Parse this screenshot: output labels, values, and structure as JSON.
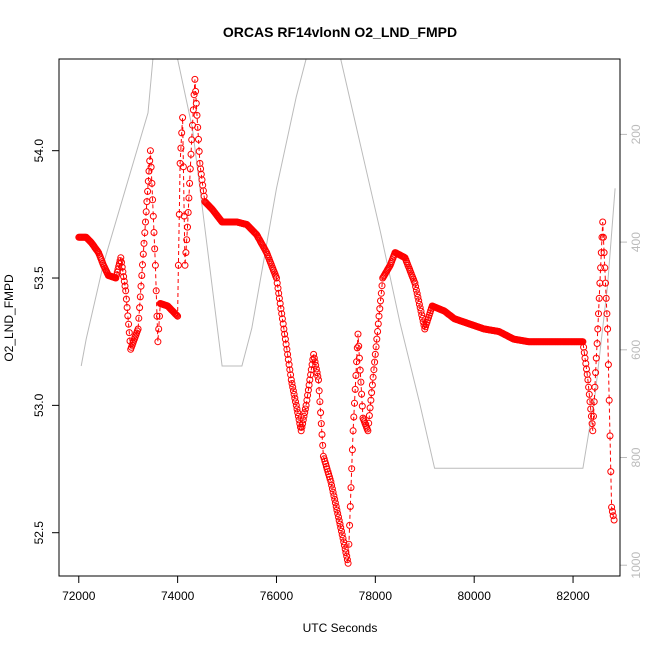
{
  "chart_data": {
    "type": "scatter",
    "title": "ORCAS RF14vlonN O2_LND_FMPD",
    "xlabel": "UTC Seconds",
    "ylabel": "O2_LND_FMPD",
    "xlim": [
      71600,
      82950
    ],
    "ylim": [
      52.33,
      54.36
    ],
    "y2lim": [
      60,
      1020
    ],
    "y2_reversed": true,
    "x_ticks": [
      72000,
      74000,
      76000,
      78000,
      80000,
      82000
    ],
    "y_ticks": [
      52.5,
      53.0,
      53.5,
      54.0
    ],
    "y2_ticks": [
      200,
      400,
      600,
      800,
      1000
    ],
    "colors": {
      "series": "#ff0000",
      "secondary": "#bbbbbb"
    },
    "series": [
      {
        "type": "line+points",
        "points": [
          [
            72000,
            53.66
          ],
          [
            72150,
            53.66
          ],
          [
            72250,
            53.64
          ],
          [
            72400,
            53.6
          ],
          [
            72500,
            53.55
          ],
          [
            72600,
            53.51
          ],
          [
            72750,
            53.5
          ],
          [
            72850,
            53.58
          ],
          [
            72950,
            53.45
          ],
          [
            73050,
            53.22
          ],
          [
            73200,
            53.3
          ],
          [
            73350,
            53.72
          ],
          [
            73450,
            54.0
          ],
          [
            73550,
            53.55
          ],
          [
            73600,
            53.25
          ],
          [
            73650,
            53.4
          ],
          [
            73800,
            53.39
          ],
          [
            74000,
            53.35
          ],
          [
            74050,
            53.95
          ],
          [
            74100,
            54.13
          ],
          [
            74150,
            53.55
          ],
          [
            74200,
            53.7
          ],
          [
            74300,
            54.1
          ],
          [
            74350,
            54.28
          ],
          [
            74450,
            53.95
          ],
          [
            74550,
            53.8
          ],
          [
            74700,
            53.77
          ],
          [
            74900,
            53.72
          ],
          [
            75200,
            53.72
          ],
          [
            75400,
            53.71
          ],
          [
            75600,
            53.67
          ],
          [
            75800,
            53.6
          ],
          [
            76000,
            53.5
          ],
          [
            76150,
            53.3
          ],
          [
            76300,
            53.1
          ],
          [
            76400,
            53.0
          ],
          [
            76500,
            52.9
          ],
          [
            76600,
            53.0
          ],
          [
            76750,
            53.2
          ],
          [
            76850,
            53.1
          ],
          [
            76950,
            52.8
          ],
          [
            77100,
            52.7
          ],
          [
            77300,
            52.52
          ],
          [
            77450,
            52.38
          ],
          [
            77550,
            52.9
          ],
          [
            77650,
            53.28
          ],
          [
            77750,
            52.95
          ],
          [
            77850,
            52.9
          ],
          [
            78000,
            53.2
          ],
          [
            78150,
            53.5
          ],
          [
            78300,
            53.55
          ],
          [
            78400,
            53.6
          ],
          [
            78600,
            53.58
          ],
          [
            78800,
            53.48
          ],
          [
            79000,
            53.3
          ],
          [
            79150,
            53.39
          ],
          [
            79400,
            53.37
          ],
          [
            79600,
            53.34
          ],
          [
            79900,
            53.32
          ],
          [
            80200,
            53.3
          ],
          [
            80500,
            53.29
          ],
          [
            80800,
            53.26
          ],
          [
            81100,
            53.25
          ],
          [
            81500,
            53.25
          ],
          [
            82200,
            53.25
          ],
          [
            82300,
            53.1
          ],
          [
            82400,
            52.9
          ],
          [
            82500,
            53.3
          ],
          [
            82600,
            53.72
          ],
          [
            82700,
            53.3
          ],
          [
            82780,
            52.6
          ],
          [
            82830,
            52.55
          ]
        ]
      },
      {
        "type": "line",
        "axis": "right",
        "points": [
          [
            72050,
            630
          ],
          [
            72150,
            580
          ],
          [
            72500,
            440
          ],
          [
            72950,
            300
          ],
          [
            73400,
            160
          ],
          [
            73500,
            60
          ],
          [
            74000,
            60
          ],
          [
            74300,
            190
          ],
          [
            74600,
            410
          ],
          [
            74900,
            630
          ],
          [
            75300,
            630
          ],
          [
            75500,
            560
          ],
          [
            76000,
            300
          ],
          [
            76400,
            130
          ],
          [
            76600,
            60
          ],
          [
            77300,
            60
          ],
          [
            77700,
            220
          ],
          [
            78100,
            380
          ],
          [
            78500,
            550
          ],
          [
            78900,
            700
          ],
          [
            79200,
            820
          ],
          [
            82200,
            820
          ],
          [
            82450,
            680
          ],
          [
            82700,
            480
          ],
          [
            82850,
            300
          ]
        ]
      }
    ]
  }
}
